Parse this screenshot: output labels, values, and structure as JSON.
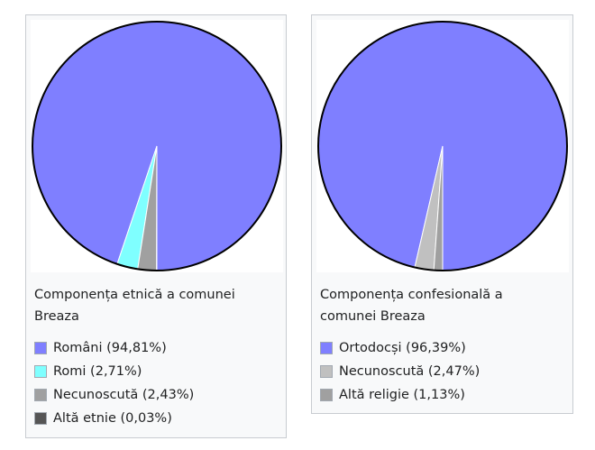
{
  "chart_data": [
    {
      "type": "pie",
      "title": "Componența etnică a comunei Breaza",
      "slices": [
        {
          "label": "Români (94,81%)",
          "value": 94.81,
          "color": "#7f7fff"
        },
        {
          "label": "Romi (2,71%)",
          "value": 2.71,
          "color": "#7fffff"
        },
        {
          "label": "Necunoscută (2,43%)",
          "value": 2.43,
          "color": "#a0a0a0"
        },
        {
          "label": "Altă etnie (0,03%)",
          "value": 0.03,
          "color": "#555555"
        }
      ]
    },
    {
      "type": "pie",
      "title": "Componența confesională a comunei Breaza",
      "slices": [
        {
          "label": "Ortodocși (96,39%)",
          "value": 96.39,
          "color": "#7f7fff"
        },
        {
          "label": "Necunoscută (2,47%)",
          "value": 2.47,
          "color": "#c0c0c0"
        },
        {
          "label": "Altă religie (1,13%)",
          "value": 1.13,
          "color": "#a0a0a0"
        }
      ]
    }
  ]
}
